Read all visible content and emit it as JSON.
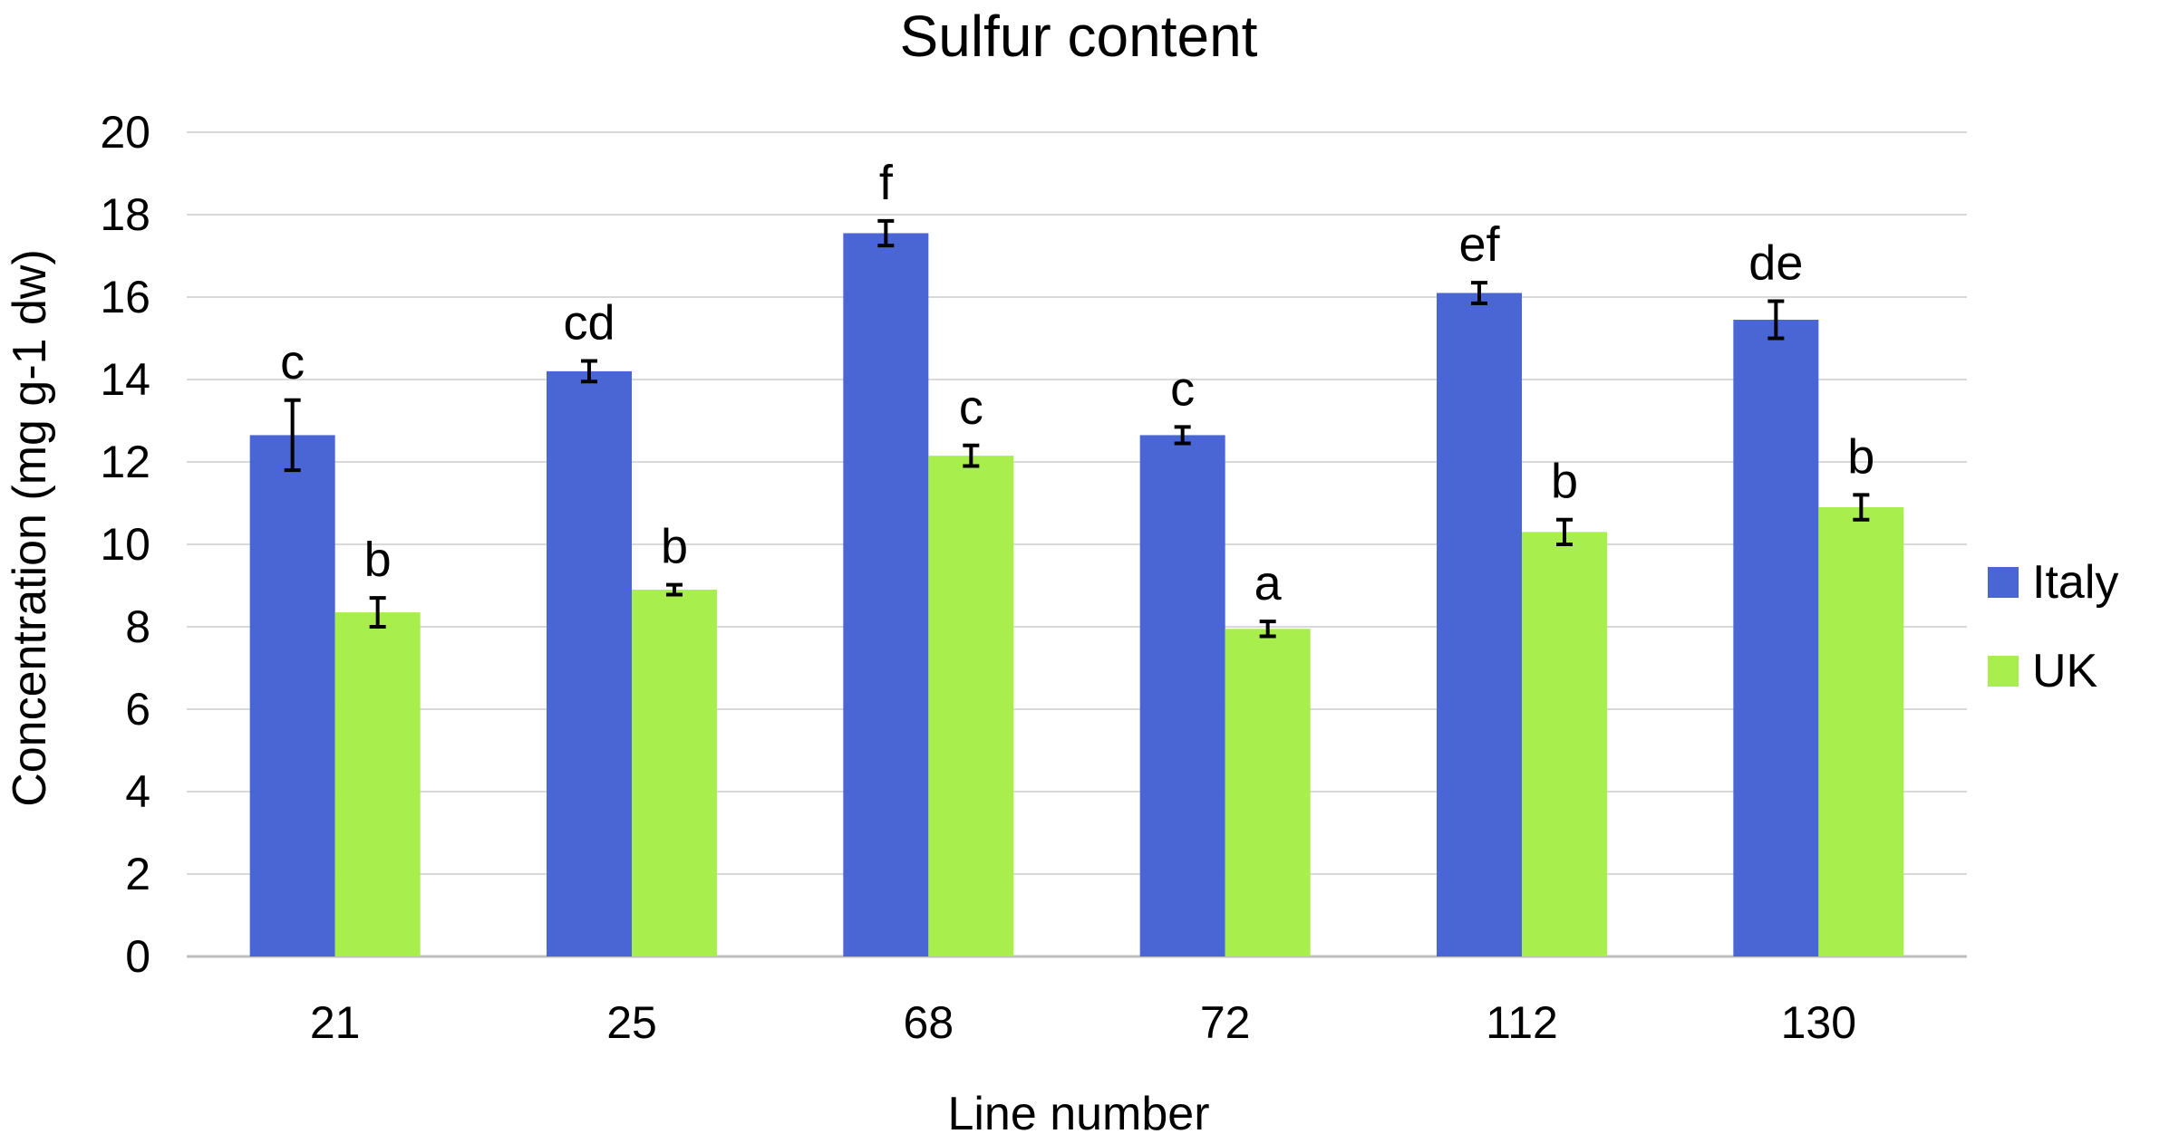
{
  "chart_data": {
    "type": "bar",
    "title": "Sulfur content",
    "xlabel": "Line number",
    "ylabel": "Concentration (mg g-1 dw)",
    "ylim": [
      0,
      20
    ],
    "yticks": [
      "0",
      "2",
      "4",
      "6",
      "8",
      "10",
      "12",
      "14",
      "16",
      "18",
      "20"
    ],
    "grid": true,
    "legend_position": "right",
    "categories": [
      "21",
      "25",
      "68",
      "72",
      "112",
      "130"
    ],
    "series": [
      {
        "name": "Italy",
        "color": "#4a66d4",
        "values": [
          12.65,
          14.2,
          17.55,
          12.65,
          16.1,
          15.45
        ],
        "errors": [
          0.85,
          0.25,
          0.3,
          0.2,
          0.25,
          0.45
        ],
        "labels": [
          "c",
          "cd",
          "f",
          "c",
          "ef",
          "de"
        ]
      },
      {
        "name": "UK",
        "color": "#a8ee4c",
        "values": [
          8.35,
          8.9,
          12.15,
          7.95,
          10.3,
          10.9
        ],
        "errors": [
          0.35,
          0.12,
          0.25,
          0.18,
          0.3,
          0.3
        ],
        "labels": [
          "b",
          "b",
          "c",
          "a",
          "b",
          "b"
        ]
      }
    ]
  }
}
